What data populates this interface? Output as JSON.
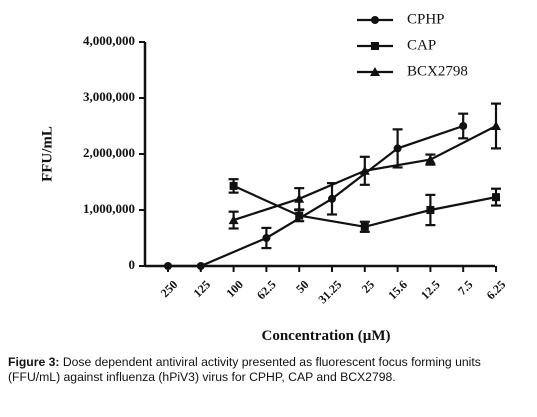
{
  "chart_data": {
    "type": "line",
    "ylabel": "FFU/mL",
    "xlabel": "Concentration (µM)",
    "categories": [
      "250",
      "125",
      "100",
      "62.5",
      "50",
      "31.25",
      "25",
      "15.6",
      "12.5",
      "7.5",
      "6.25"
    ],
    "ylim": [
      0,
      4000000
    ],
    "y_ticks": [
      "0",
      "1,000,000",
      "2,000,000",
      "3,000,000",
      "4,000,000"
    ],
    "grid": false,
    "legend_position": "top-right",
    "series": [
      {
        "name": "CPHP",
        "marker": "circle",
        "values": [
          0,
          0,
          null,
          500000,
          null,
          1200000,
          null,
          2100000,
          null,
          2500000,
          null
        ],
        "errors": [
          0,
          0,
          null,
          180000,
          null,
          280000,
          null,
          340000,
          null,
          220000,
          null
        ]
      },
      {
        "name": "CAP",
        "marker": "square",
        "values": [
          null,
          null,
          1430000,
          null,
          900000,
          null,
          700000,
          null,
          1000000,
          null,
          1230000
        ],
        "errors": [
          null,
          null,
          120000,
          null,
          100000,
          null,
          90000,
          null,
          270000,
          null,
          150000
        ]
      },
      {
        "name": "BCX2798",
        "marker": "triangle",
        "values": [
          null,
          null,
          820000,
          null,
          1200000,
          null,
          1700000,
          null,
          1900000,
          null,
          2500000
        ],
        "errors": [
          null,
          null,
          150000,
          null,
          190000,
          null,
          250000,
          null,
          90000,
          null,
          400000
        ]
      }
    ]
  },
  "caption": {
    "label": "Figure 3:",
    "text": " Dose dependent antiviral activity presented as fluorescent focus forming units (FFU/mL) against influenza (hPiV3) virus for CPHP, CAP and BCX2798."
  }
}
